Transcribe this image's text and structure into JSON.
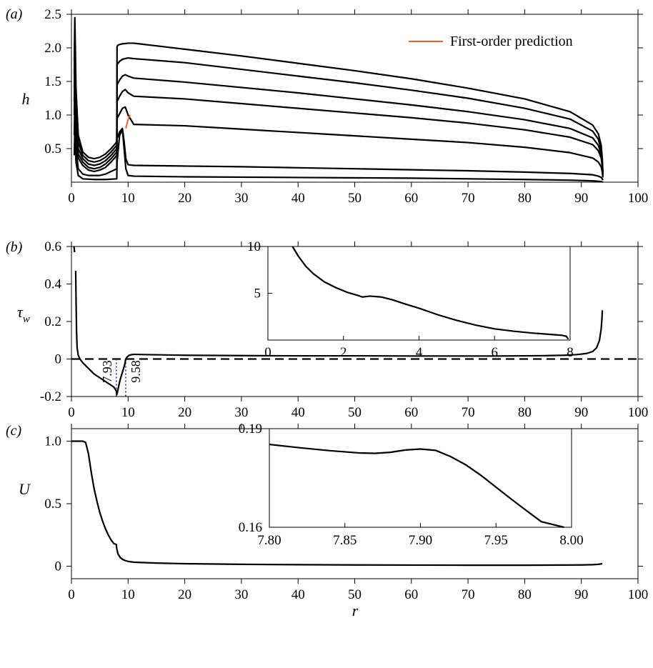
{
  "chart_data": [
    {
      "type": "line",
      "panel_label": "(a)",
      "xlabel": "",
      "ylabel": "h",
      "xlim": [
        0,
        100
      ],
      "ylim": [
        0,
        2.5
      ],
      "xticks": [
        "0",
        "10",
        "20",
        "30",
        "40",
        "50",
        "60",
        "70",
        "80",
        "90",
        "100"
      ],
      "yticks": [
        "0.5",
        "1.0",
        "1.5",
        "2.0",
        "2.5"
      ],
      "legend": {
        "label": "First-order prediction",
        "color": "#e8602c",
        "placement": "top-right"
      },
      "series": [
        {
          "r": [
            0.5,
            0.6,
            0.8,
            1.2,
            2,
            3,
            4,
            5,
            6,
            7,
            8,
            8.05,
            8.2,
            8.5,
            9,
            10,
            11,
            12,
            20,
            30,
            40,
            50,
            60,
            70,
            80,
            88,
            92,
            93,
            93.5,
            93.7,
            93.8
          ],
          "h": [
            1.8,
            2.45,
            1.4,
            0.7,
            0.45,
            0.37,
            0.35,
            0.37,
            0.42,
            0.5,
            0.6,
            2.02,
            2.04,
            2.05,
            2.06,
            2.07,
            2.07,
            2.06,
            1.98,
            1.88,
            1.77,
            1.66,
            1.54,
            1.4,
            1.24,
            1.05,
            0.85,
            0.72,
            0.55,
            0.35,
            0.15
          ]
        },
        {
          "r": [
            0.5,
            0.6,
            0.8,
            1.2,
            2,
            3,
            4,
            5,
            6,
            7,
            8,
            8.05,
            8.5,
            9,
            10,
            11,
            20,
            30,
            40,
            50,
            60,
            70,
            80,
            88,
            92,
            93,
            93.5,
            93.7,
            93.8
          ],
          "h": [
            1.6,
            2.2,
            1.2,
            0.6,
            0.4,
            0.32,
            0.3,
            0.32,
            0.37,
            0.45,
            0.55,
            1.75,
            1.8,
            1.83,
            1.85,
            1.84,
            1.78,
            1.68,
            1.58,
            1.48,
            1.37,
            1.25,
            1.1,
            0.94,
            0.76,
            0.64,
            0.48,
            0.3,
            0.13
          ]
        },
        {
          "r": [
            0.5,
            0.6,
            0.8,
            1.2,
            2,
            3,
            4,
            5,
            6,
            7,
            8,
            8.05,
            8.5,
            9,
            9.5,
            10,
            11,
            20,
            30,
            40,
            50,
            60,
            70,
            80,
            88,
            92,
            93,
            93.5,
            93.7,
            93.8
          ],
          "h": [
            1.4,
            2.0,
            1.0,
            0.5,
            0.35,
            0.27,
            0.25,
            0.27,
            0.32,
            0.4,
            0.5,
            1.45,
            1.52,
            1.58,
            1.6,
            1.58,
            1.55,
            1.49,
            1.41,
            1.33,
            1.24,
            1.15,
            1.05,
            0.93,
            0.8,
            0.66,
            0.55,
            0.42,
            0.27,
            0.12
          ]
        },
        {
          "r": [
            0.5,
            0.6,
            0.8,
            1.2,
            2,
            3,
            4,
            5,
            6,
            7,
            8,
            8.05,
            8.5,
            9,
            9.5,
            10,
            11,
            20,
            30,
            40,
            50,
            60,
            70,
            80,
            88,
            92,
            93,
            93.5,
            93.7,
            93.8
          ],
          "h": [
            1.2,
            1.8,
            0.85,
            0.42,
            0.3,
            0.22,
            0.2,
            0.22,
            0.27,
            0.35,
            0.45,
            1.2,
            1.28,
            1.35,
            1.38,
            1.33,
            1.28,
            1.24,
            1.17,
            1.1,
            1.03,
            0.96,
            0.88,
            0.78,
            0.67,
            0.56,
            0.47,
            0.36,
            0.23,
            0.1
          ]
        },
        {
          "r": [
            0.5,
            0.6,
            0.8,
            1.2,
            2,
            3,
            4,
            5,
            6,
            7,
            8,
            8.05,
            8.5,
            9,
            9.5,
            10,
            11,
            20,
            30,
            40,
            50,
            60,
            70,
            80,
            88,
            92,
            93,
            93.5,
            93.7,
            93.8
          ],
          "h": [
            1.0,
            1.6,
            0.7,
            0.36,
            0.25,
            0.18,
            0.16,
            0.18,
            0.22,
            0.3,
            0.4,
            0.95,
            1.02,
            1.1,
            1.12,
            1.0,
            0.86,
            0.84,
            0.79,
            0.74,
            0.69,
            0.64,
            0.59,
            0.52,
            0.44,
            0.36,
            0.3,
            0.23,
            0.15,
            0.07
          ]
        },
        {
          "r": [
            0.5,
            0.6,
            0.8,
            1.2,
            2,
            3,
            4,
            5,
            6,
            7,
            8,
            8.05,
            8.5,
            9,
            9.3,
            9.6,
            10,
            11,
            20,
            30,
            40,
            50,
            60,
            70,
            80,
            88,
            92,
            93,
            93.5,
            93.7,
            93.8
          ],
          "h": [
            0.7,
            1.2,
            0.5,
            0.2,
            0.12,
            0.1,
            0.1,
            0.1,
            0.12,
            0.16,
            0.2,
            0.65,
            0.75,
            0.8,
            0.6,
            0.35,
            0.26,
            0.25,
            0.24,
            0.23,
            0.215,
            0.2,
            0.185,
            0.17,
            0.15,
            0.13,
            0.11,
            0.09,
            0.07,
            0.05,
            0.03
          ]
        },
        {
          "r": [
            0.5,
            0.6,
            0.8,
            1.2,
            2,
            4,
            6,
            8,
            8.05,
            8.5,
            9,
            9.3,
            9.6,
            10,
            11,
            20,
            40,
            60,
            80,
            88,
            92,
            93.5,
            93.8
          ],
          "h": [
            0.4,
            0.8,
            0.3,
            0.1,
            0.05,
            0.04,
            0.04,
            0.05,
            0.3,
            0.7,
            0.78,
            0.5,
            0.2,
            0.1,
            0.09,
            0.08,
            0.07,
            0.06,
            0.04,
            0.03,
            0.02,
            0.01,
            0.0
          ]
        }
      ],
      "prediction": {
        "r": [
          9.6,
          9.8,
          10.0,
          10.2,
          10.4
        ],
        "h": [
          0.8,
          0.87,
          0.93,
          0.98,
          1.0
        ]
      }
    },
    {
      "type": "line",
      "panel_label": "(b)",
      "xlabel": "",
      "ylabel": "τ",
      "ylabel_sub": "w",
      "xlim": [
        0,
        100
      ],
      "ylim": [
        -0.2,
        0.6
      ],
      "xticks": [
        "0",
        "10",
        "20",
        "30",
        "40",
        "50",
        "60",
        "70",
        "80",
        "90",
        "100"
      ],
      "yticks": [
        "-0.2",
        "0",
        "0.2",
        "0.4",
        "0.6"
      ],
      "series": [
        {
          "r": [
            0.45,
            0.55
          ],
          "tau": [
            0.6,
            0.57
          ]
        },
        {
          "r": [
            0.75,
            0.82,
            0.9,
            1.0,
            1.2,
            1.5,
            2,
            3,
            4,
            5,
            6,
            7,
            7.5,
            7.9,
            8.0,
            8.1,
            8.3,
            8.6,
            9.0,
            9.4,
            9.58,
            9.8,
            10.2,
            10.6,
            11,
            12,
            20,
            30,
            40,
            50,
            60,
            70,
            75,
            80,
            84,
            87,
            89,
            90,
            91,
            92,
            92.7,
            93.2,
            93.5,
            93.65,
            93.7
          ],
          "tau": [
            0.47,
            0.3,
            0.15,
            0.06,
            0.02,
            0.0,
            -0.02,
            -0.05,
            -0.08,
            -0.1,
            -0.12,
            -0.14,
            -0.15,
            -0.17,
            -0.19,
            -0.18,
            -0.15,
            -0.11,
            -0.07,
            -0.03,
            0.0,
            0.01,
            0.02,
            0.023,
            0.025,
            0.024,
            0.02,
            0.018,
            0.017,
            0.017,
            0.016,
            0.016,
            0.016,
            0.017,
            0.018,
            0.02,
            0.023,
            0.026,
            0.03,
            0.04,
            0.06,
            0.1,
            0.16,
            0.22,
            0.26
          ]
        }
      ],
      "zero_line": true,
      "annotations": [
        "7.93",
        "9.58"
      ],
      "inset": {
        "xlim": [
          0,
          8
        ],
        "ylim": [
          0,
          10
        ],
        "xticks": [
          "0",
          "2",
          "4",
          "6",
          "8"
        ],
        "yticks": [
          "5",
          "10"
        ],
        "x": [
          0.65,
          0.8,
          1.0,
          1.2,
          1.5,
          1.8,
          2.1,
          2.4,
          2.5,
          2.7,
          3.0,
          3.3,
          3.6,
          4.0,
          4.5,
          5.0,
          5.5,
          6.0,
          6.5,
          7.0,
          7.5,
          7.8,
          7.9,
          7.95
        ],
        "y": [
          10,
          9.0,
          7.9,
          7.1,
          6.2,
          5.6,
          5.1,
          4.75,
          4.6,
          4.7,
          4.6,
          4.3,
          3.9,
          3.4,
          2.7,
          2.1,
          1.6,
          1.2,
          0.95,
          0.75,
          0.6,
          0.5,
          0.4,
          0.1
        ]
      }
    },
    {
      "type": "line",
      "panel_label": "(c)",
      "xlabel": "r",
      "ylabel": "U",
      "xlim": [
        0,
        100
      ],
      "ylim": [
        -0.1,
        1.1
      ],
      "xticks": [
        "0",
        "10",
        "20",
        "30",
        "40",
        "50",
        "60",
        "70",
        "80",
        "90",
        "100"
      ],
      "yticks": [
        "0",
        "0.5",
        "1.0"
      ],
      "series": [
        {
          "r": [
            0,
            1,
            2,
            2.5,
            3,
            3.5,
            4,
            4.5,
            5,
            5.5,
            6,
            6.5,
            7,
            7.5,
            7.9,
            8.0,
            8.2,
            8.6,
            9,
            9.5,
            10,
            11,
            12,
            15,
            20,
            30,
            40,
            50,
            60,
            70,
            80,
            90,
            92,
            93,
            93.7
          ],
          "U": [
            1.0,
            1.0,
            1.0,
            0.99,
            0.9,
            0.75,
            0.62,
            0.52,
            0.43,
            0.36,
            0.3,
            0.25,
            0.21,
            0.18,
            0.175,
            0.14,
            0.1,
            0.07,
            0.055,
            0.045,
            0.038,
            0.032,
            0.03,
            0.025,
            0.02,
            0.015,
            0.012,
            0.01,
            0.009,
            0.008,
            0.008,
            0.01,
            0.012,
            0.015,
            0.02
          ]
        }
      ],
      "inset": {
        "xlim": [
          7.8,
          8.0
        ],
        "ylim": [
          0.16,
          0.19
        ],
        "xticks": [
          "7.80",
          "7.85",
          "7.90",
          "7.95",
          "8.00"
        ],
        "yticks": [
          "0.16",
          "0.19"
        ],
        "x": [
          7.8,
          7.82,
          7.84,
          7.86,
          7.87,
          7.88,
          7.89,
          7.9,
          7.91,
          7.92,
          7.93,
          7.94,
          7.95,
          7.96,
          7.97,
          7.98,
          7.995
        ],
        "y": [
          0.1852,
          0.1842,
          0.1833,
          0.1826,
          0.1825,
          0.1828,
          0.1835,
          0.1838,
          0.1834,
          0.1815,
          0.179,
          0.1758,
          0.1722,
          0.1686,
          0.1651,
          0.1617,
          0.16
        ]
      }
    }
  ]
}
